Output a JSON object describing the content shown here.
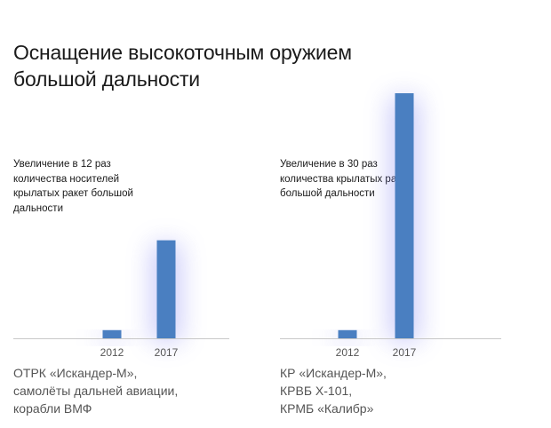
{
  "title": "Оснащение высокоточным оружием большой дальности",
  "colors": {
    "bar": "#4a7fc1",
    "glow": "#6a6cf0",
    "axis": "#c8c8c8",
    "caption": "#555555"
  },
  "chart_data": [
    {
      "type": "bar",
      "annotation": "Увеличение в 12 раз количества носителей крылатых ракет большой дальности",
      "categories": [
        "2012",
        "2017"
      ],
      "values": [
        1,
        12
      ],
      "ylim": [
        0,
        30
      ],
      "caption": [
        "ОТРК «Искандер-М»,",
        "самолёты дальней авиации,",
        "корабли ВМФ"
      ]
    },
    {
      "type": "bar",
      "annotation": "Увеличение в 30 раз количества крылатых ракет большой дальности",
      "categories": [
        "2012",
        "2017"
      ],
      "values": [
        1,
        30
      ],
      "ylim": [
        0,
        30
      ],
      "caption": [
        "КР «Искандер-М»,",
        "КРВБ Х-101,",
        "КРМБ «Калибр»"
      ]
    }
  ]
}
